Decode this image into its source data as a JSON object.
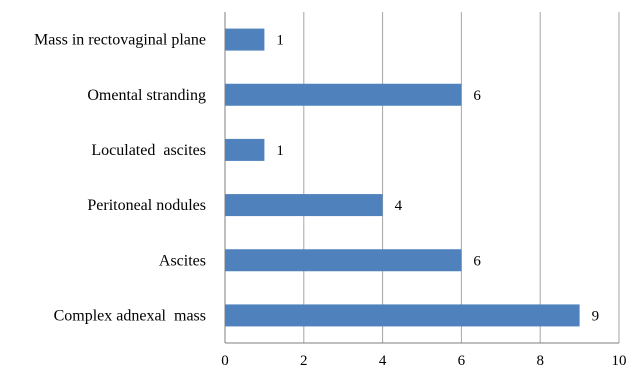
{
  "chart_data": {
    "type": "bar",
    "orientation": "horizontal",
    "categories": [
      "Mass in rectovaginal plane",
      "Omental stranding",
      "Loculated  ascites",
      "Peritoneal nodules",
      "Ascites",
      "Complex adnexal  mass"
    ],
    "values": [
      1,
      6,
      1,
      4,
      6,
      9
    ],
    "value_labels": [
      "1",
      "6",
      "1",
      "4",
      "6",
      "9"
    ],
    "xlim": [
      0,
      10
    ],
    "xticks": [
      "0",
      "2",
      "4",
      "6",
      "8",
      "10"
    ],
    "grid": "vertical",
    "legend": "none",
    "title": "",
    "xlabel": "",
    "ylabel": "",
    "colors": {
      "bar": "#4f81bd"
    }
  }
}
